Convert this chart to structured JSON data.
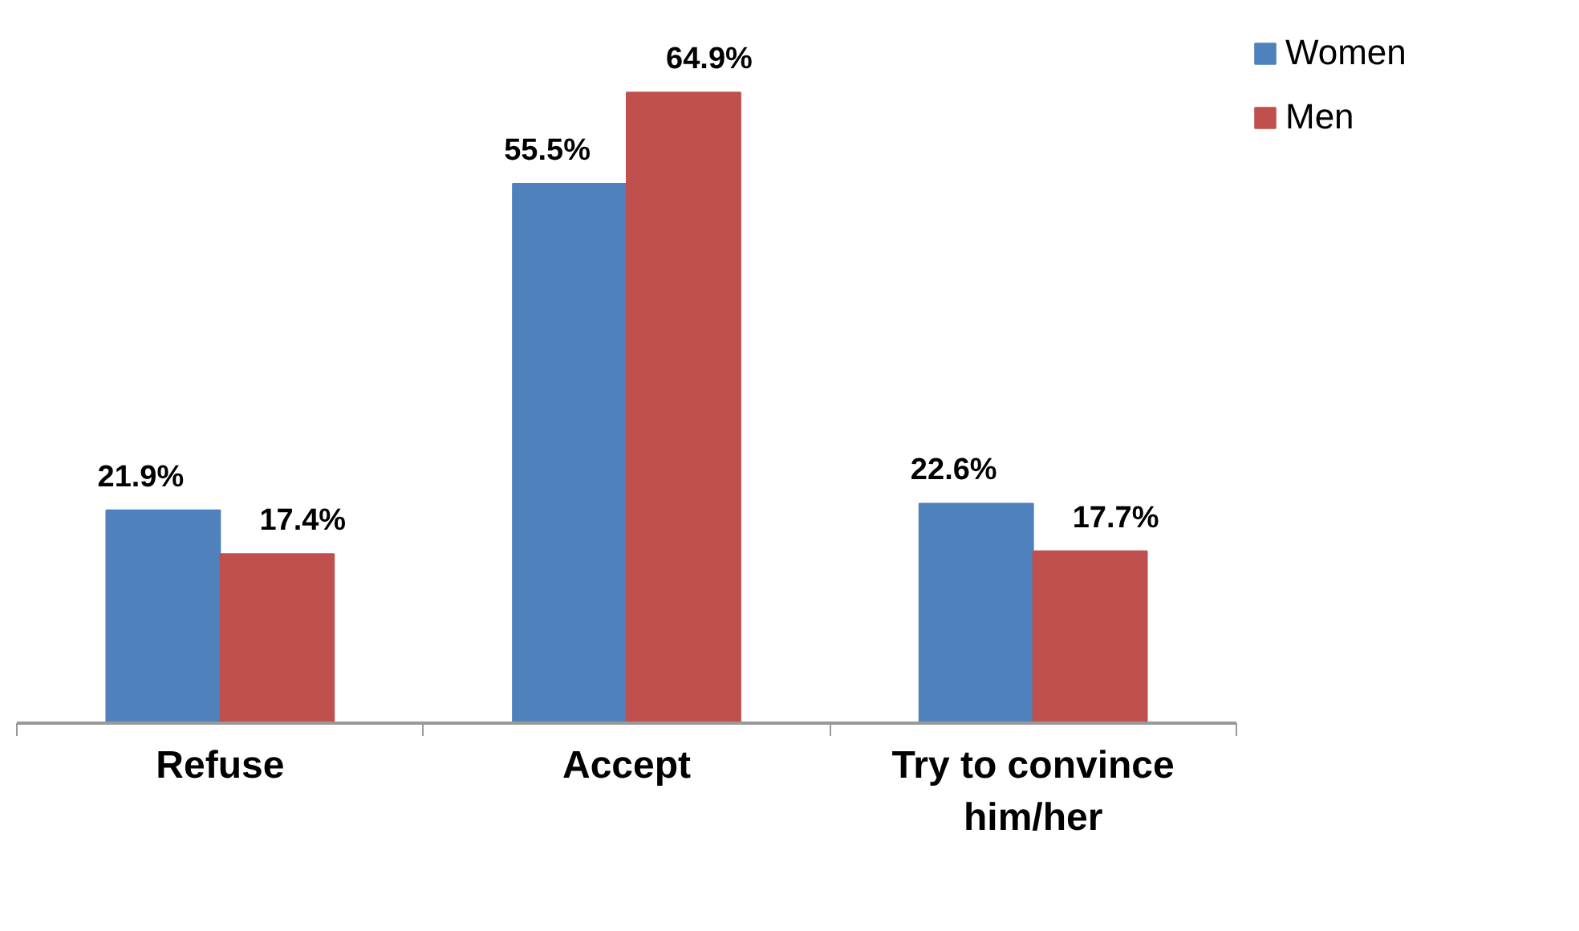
{
  "chart_data": {
    "type": "bar",
    "categories": [
      "Refuse",
      "Accept",
      "Try to convince him/her"
    ],
    "series": [
      {
        "name": "Women",
        "color": "#4f81bd",
        "values": [
          21.9,
          55.5,
          22.6
        ],
        "value_labels": [
          "21.9%",
          "55.5%",
          "22.6%"
        ]
      },
      {
        "name": "Men",
        "color": "#c0504d",
        "values": [
          17.4,
          64.9,
          17.7
        ],
        "value_labels": [
          "17.4%",
          "64.9%",
          "17.7%"
        ]
      }
    ],
    "legend": "right"
  }
}
